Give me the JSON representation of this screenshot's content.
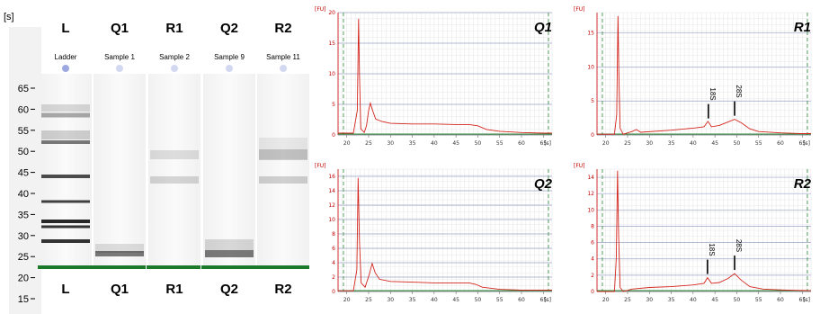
{
  "gel": {
    "unit_label": "[s]",
    "size_ticks": [
      "65",
      "60",
      "55",
      "50",
      "45",
      "40",
      "35",
      "30",
      "25",
      "20",
      "15"
    ],
    "lanes": [
      {
        "key": "L",
        "sample": "Ladder"
      },
      {
        "key": "Q1",
        "sample": "Sample 1"
      },
      {
        "key": "R1",
        "sample": "Sample 2"
      },
      {
        "key": "Q2",
        "sample": "Sample 9"
      },
      {
        "key": "R2",
        "sample": "Sample 11"
      }
    ],
    "colors": {
      "marker_band": "#1a7a2a",
      "well_dot": "#9ea8e0",
      "text": "#000000"
    }
  },
  "electropherograms": [
    {
      "title": "Q1",
      "y_label": "[FU]",
      "x_unit": "[s]",
      "x_ticks": [
        "20",
        "25",
        "30",
        "35",
        "40",
        "45",
        "50",
        "55",
        "60",
        "65"
      ],
      "y_ticks": [
        "0",
        "5",
        "10",
        "15",
        "20"
      ],
      "xlim": [
        18,
        67
      ],
      "ylim": [
        0,
        20
      ],
      "annotations": [],
      "trace": [
        [
          18,
          0.3
        ],
        [
          21.5,
          0.3
        ],
        [
          22.4,
          4
        ],
        [
          22.7,
          19
        ],
        [
          22.9,
          10
        ],
        [
          23.2,
          1
        ],
        [
          24,
          0.4
        ],
        [
          24.5,
          1.5
        ],
        [
          25,
          4
        ],
        [
          25.4,
          5.2
        ],
        [
          25.9,
          4
        ],
        [
          26.6,
          2.6
        ],
        [
          28,
          2.2
        ],
        [
          30,
          1.9
        ],
        [
          35,
          1.8
        ],
        [
          40,
          1.8
        ],
        [
          45,
          1.7
        ],
        [
          48,
          1.7
        ],
        [
          50,
          1.5
        ],
        [
          52,
          0.9
        ],
        [
          55,
          0.6
        ],
        [
          60,
          0.4
        ],
        [
          65,
          0.3
        ],
        [
          67,
          0.3
        ]
      ]
    },
    {
      "title": "R1",
      "y_label": "[FU]",
      "x_unit": "[s]",
      "x_ticks": [
        "20",
        "25",
        "30",
        "35",
        "40",
        "45",
        "50",
        "55",
        "60",
        "65"
      ],
      "y_ticks": [
        "0",
        "5",
        "10",
        "15"
      ],
      "xlim": [
        18,
        67
      ],
      "ylim": [
        0,
        18
      ],
      "annotations": [
        {
          "label": "18S",
          "x": 43.5
        },
        {
          "label": "28S",
          "x": 49.5
        }
      ],
      "trace": [
        [
          18,
          0.1
        ],
        [
          22,
          0.1
        ],
        [
          22.5,
          3
        ],
        [
          22.8,
          17.5
        ],
        [
          23,
          9
        ],
        [
          23.3,
          1
        ],
        [
          24,
          0.1
        ],
        [
          26,
          0.5
        ],
        [
          27,
          0.8
        ],
        [
          28,
          0.4
        ],
        [
          35,
          0.7
        ],
        [
          40,
          1.0
        ],
        [
          42.5,
          1.2
        ],
        [
          43.4,
          2.0
        ],
        [
          44.2,
          1.2
        ],
        [
          46,
          1.4
        ],
        [
          48,
          1.9
        ],
        [
          49.5,
          2.3
        ],
        [
          51,
          1.8
        ],
        [
          53,
          0.9
        ],
        [
          55,
          0.5
        ],
        [
          60,
          0.3
        ],
        [
          65,
          0.2
        ],
        [
          67,
          0.2
        ]
      ]
    },
    {
      "title": "Q2",
      "y_label": "[FU]",
      "x_unit": "[s]",
      "x_ticks": [
        "20",
        "25",
        "30",
        "35",
        "40",
        "45",
        "50",
        "55",
        "60",
        "65"
      ],
      "y_ticks": [
        "0",
        "2",
        "4",
        "6",
        "8",
        "10",
        "12",
        "14",
        "16"
      ],
      "xlim": [
        18,
        67
      ],
      "ylim": [
        0,
        17
      ],
      "annotations": [],
      "trace": [
        [
          18,
          0.1
        ],
        [
          21.5,
          0.1
        ],
        [
          22.3,
          3
        ],
        [
          22.6,
          15.8
        ],
        [
          22.9,
          7
        ],
        [
          23.3,
          1.2
        ],
        [
          24.2,
          0.6
        ],
        [
          25.2,
          2.5
        ],
        [
          25.8,
          3.9
        ],
        [
          26.5,
          2.6
        ],
        [
          27.5,
          1.7
        ],
        [
          30,
          1.4
        ],
        [
          35,
          1.3
        ],
        [
          40,
          1.2
        ],
        [
          45,
          1.2
        ],
        [
          48,
          1.2
        ],
        [
          49.5,
          1.0
        ],
        [
          51,
          0.6
        ],
        [
          55,
          0.3
        ],
        [
          60,
          0.2
        ],
        [
          67,
          0.2
        ]
      ]
    },
    {
      "title": "R2",
      "y_label": "[FU]",
      "x_unit": "[s]",
      "x_ticks": [
        "20",
        "25",
        "30",
        "35",
        "40",
        "45",
        "50",
        "55",
        "60",
        "65"
      ],
      "y_ticks": [
        "0",
        "2",
        "4",
        "6",
        "8",
        "10",
        "12",
        "14"
      ],
      "xlim": [
        18,
        67
      ],
      "ylim": [
        0,
        15
      ],
      "annotations": [
        {
          "label": "18S",
          "x": 43.3
        },
        {
          "label": "28S",
          "x": 49.5
        }
      ],
      "trace": [
        [
          18,
          0
        ],
        [
          22,
          0
        ],
        [
          22.4,
          4
        ],
        [
          22.7,
          14.8
        ],
        [
          22.95,
          7
        ],
        [
          23.3,
          0.5
        ],
        [
          24,
          0
        ],
        [
          26,
          0.3
        ],
        [
          30,
          0.5
        ],
        [
          35,
          0.6
        ],
        [
          40,
          0.8
        ],
        [
          42.5,
          1.0
        ],
        [
          43.3,
          1.7
        ],
        [
          44.2,
          1.0
        ],
        [
          46,
          1.1
        ],
        [
          48,
          1.6
        ],
        [
          49.5,
          2.2
        ],
        [
          51,
          1.4
        ],
        [
          53,
          0.6
        ],
        [
          56,
          0.3
        ],
        [
          60,
          0.2
        ],
        [
          67,
          0.1
        ]
      ]
    }
  ]
}
